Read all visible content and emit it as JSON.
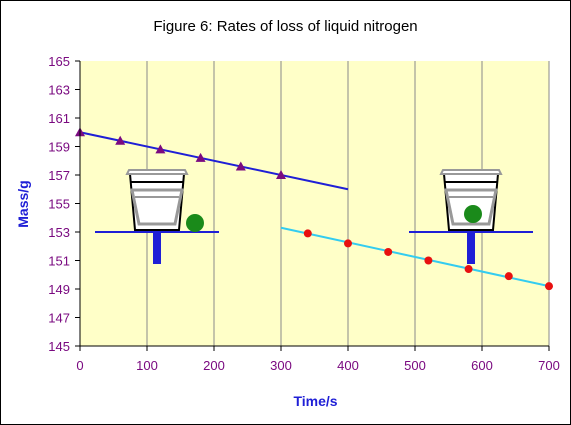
{
  "chart_data": {
    "type": "line",
    "title": "Figure 6: Rates of loss of liquid nitrogen",
    "xlabel": "Time/s",
    "ylabel": "Mass/g",
    "xlim": [
      0,
      700
    ],
    "ylim": [
      145,
      165
    ],
    "x_ticks": [
      0,
      100,
      200,
      300,
      400,
      500,
      600,
      700
    ],
    "y_ticks": [
      145,
      147,
      149,
      151,
      153,
      155,
      157,
      159,
      161,
      163,
      165
    ],
    "grid": "vertical",
    "legend": "none",
    "series": [
      {
        "color": "#1f1fd6",
        "marker": "triangle",
        "marker_color": "#7a0a80",
        "points": [
          [
            0,
            160.0
          ],
          [
            60,
            159.4
          ],
          [
            120,
            158.8
          ],
          [
            180,
            158.2
          ],
          [
            240,
            157.6
          ],
          [
            300,
            157.0
          ]
        ],
        "trend": [
          [
            0,
            160.0
          ],
          [
            400,
            156.0
          ]
        ]
      },
      {
        "color": "#33ccf0",
        "marker": "circle",
        "marker_color": "#e81010",
        "points": [
          [
            340,
            152.9
          ],
          [
            400,
            152.2
          ],
          [
            460,
            151.6
          ],
          [
            520,
            151.0
          ],
          [
            580,
            150.4
          ],
          [
            640,
            149.9
          ],
          [
            700,
            149.2
          ]
        ],
        "trend": [
          [
            300,
            153.3
          ],
          [
            700,
            149.2
          ]
        ]
      }
    ]
  },
  "colors": {
    "plot_bg": "#ffffc8",
    "tick_text": "#7a0a80",
    "axis_title": "#1f1fd6",
    "grid": "#8a8a8a"
  },
  "illustrations": [
    {
      "name": "insulated-cup-on-balance",
      "ball_color": "#1a8a1a"
    },
    {
      "name": "insulated-cup-on-balance",
      "ball_color": "#1a8a1a"
    }
  ]
}
